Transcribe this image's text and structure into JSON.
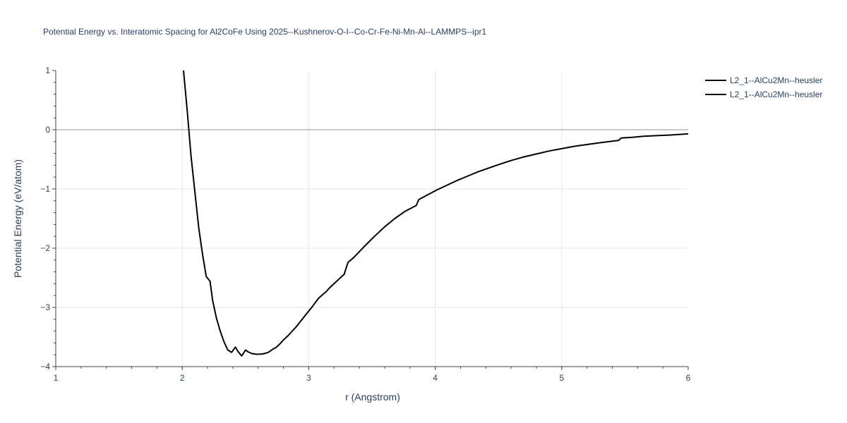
{
  "chart_data": {
    "type": "line",
    "title": "Potential Energy vs. Interatomic Spacing for Al2CoFe Using 2025--Kushnerov-O-I--Co-Cr-Fe-Ni-Mn-Al--LAMMPS--ipr1",
    "xlabel": "r (Angstrom)",
    "ylabel": "Potential Energy (eV/atom)",
    "xlim": [
      1,
      6
    ],
    "ylim": [
      -4,
      1
    ],
    "x_ticks": [
      "1",
      "2",
      "3",
      "4",
      "5",
      "6"
    ],
    "y_ticks": [
      "1",
      "0",
      "−1",
      "−2",
      "−3",
      "−4"
    ],
    "grid": true,
    "legend_position": "top-right",
    "series": [
      {
        "name": "L2_1--AlCu2Mn--heusler",
        "color": "#000000",
        "x": [
          2.01,
          2.04,
          2.07,
          2.1,
          2.13,
          2.16,
          2.19,
          2.22,
          2.24,
          2.27,
          2.3,
          2.33,
          2.36,
          2.39,
          2.42,
          2.44,
          2.47,
          2.5,
          2.52,
          2.55,
          2.58,
          2.62,
          2.65,
          2.68,
          2.72,
          2.74,
          2.77,
          2.8,
          2.84,
          2.9,
          2.96,
          3.02,
          3.08,
          3.14,
          3.16,
          3.2,
          3.24,
          3.28,
          3.31,
          3.36,
          3.44,
          3.52,
          3.6,
          3.68,
          3.76,
          3.85,
          3.87,
          3.94,
          4.02,
          4.1,
          4.18,
          4.26,
          4.34,
          4.42,
          4.5,
          4.6,
          4.7,
          4.8,
          4.9,
          5.0,
          5.1,
          5.2,
          5.3,
          5.45,
          5.47,
          5.55,
          5.65,
          5.75,
          5.85,
          6.0
        ],
        "y": [
          1.0,
          0.3,
          -0.45,
          -1.05,
          -1.65,
          -2.1,
          -2.48,
          -2.56,
          -2.88,
          -3.18,
          -3.4,
          -3.58,
          -3.72,
          -3.76,
          -3.67,
          -3.74,
          -3.82,
          -3.72,
          -3.75,
          -3.78,
          -3.79,
          -3.79,
          -3.78,
          -3.76,
          -3.7,
          -3.68,
          -3.62,
          -3.55,
          -3.47,
          -3.33,
          -3.17,
          -3.01,
          -2.84,
          -2.73,
          -2.68,
          -2.6,
          -2.52,
          -2.44,
          -2.24,
          -2.15,
          -1.97,
          -1.8,
          -1.64,
          -1.5,
          -1.38,
          -1.28,
          -1.18,
          -1.1,
          -1.01,
          -0.93,
          -0.85,
          -0.78,
          -0.71,
          -0.65,
          -0.59,
          -0.52,
          -0.46,
          -0.41,
          -0.36,
          -0.32,
          -0.28,
          -0.25,
          -0.22,
          -0.18,
          -0.14,
          -0.13,
          -0.11,
          -0.1,
          -0.09,
          -0.07
        ]
      },
      {
        "name": "L2_1--AlCu2Mn--heusler",
        "color": "#000000",
        "x": [],
        "y": []
      }
    ]
  }
}
